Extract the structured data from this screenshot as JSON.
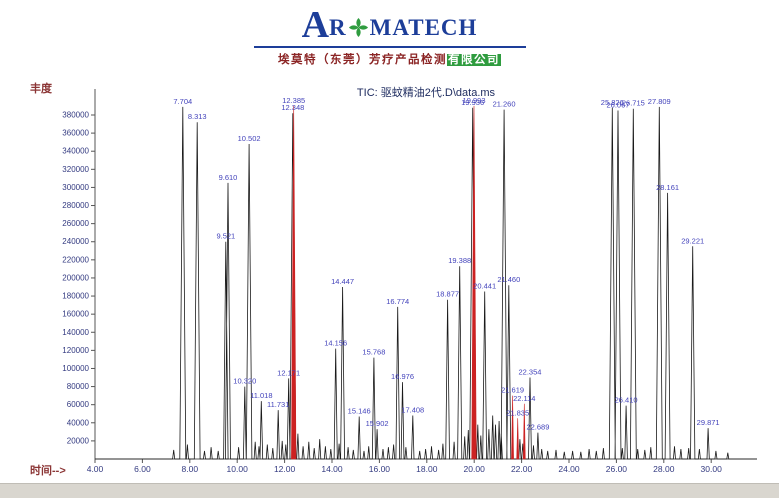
{
  "header": {
    "logo": {
      "big_a": "A",
      "r": "R",
      "matech": "MATECH",
      "cross_icon": "green-clover-cross",
      "brand_color": "#1d3e99",
      "icon_color": "#2f9c3f"
    },
    "company": {
      "main": "埃莫特（东莞）芳疗产品检测",
      "highlight": "有限公司",
      "text_color": "#8b2424",
      "highlight_bg": "#2f9c3f"
    }
  },
  "chart_data": {
    "type": "line",
    "title": "TIC: 驱蚊精油2代.D\\data.ms",
    "xlabel": "时间-->",
    "ylabel": "丰度",
    "x_range": [
      4.0,
      31.5
    ],
    "y_range": [
      0,
      400000
    ],
    "grid": false,
    "legend": "none",
    "line_color": "#1a1a1a",
    "highlight_color": "#cc2222",
    "label_color": "#4343bb",
    "axis_text_color": "#333a80",
    "x_ticks": [
      {
        "value": 4,
        "label": "4.00"
      },
      {
        "value": 6,
        "label": "6.00"
      },
      {
        "value": 8,
        "label": "8.00"
      },
      {
        "value": 10,
        "label": "10.00"
      },
      {
        "value": 12,
        "label": "12.00"
      },
      {
        "value": 14,
        "label": "14.00"
      },
      {
        "value": 16,
        "label": "16.00"
      },
      {
        "value": 18,
        "label": "18.00"
      },
      {
        "value": 20,
        "label": "20.00"
      },
      {
        "value": 22,
        "label": "22.00"
      },
      {
        "value": 24,
        "label": "24.00"
      },
      {
        "value": 26,
        "label": "26.00"
      },
      {
        "value": 28,
        "label": "28.00"
      },
      {
        "value": 30,
        "label": "30.00"
      }
    ],
    "y_ticks": [
      {
        "value": 20000,
        "label": "20000"
      },
      {
        "value": 40000,
        "label": "40000"
      },
      {
        "value": 60000,
        "label": "60000"
      },
      {
        "value": 80000,
        "label": "80000"
      },
      {
        "value": 100000,
        "label": "100000"
      },
      {
        "value": 120000,
        "label": "120000"
      },
      {
        "value": 140000,
        "label": "140000"
      },
      {
        "value": 160000,
        "label": "160000"
      },
      {
        "value": 180000,
        "label": "180000"
      },
      {
        "value": 200000,
        "label": "200000"
      },
      {
        "value": 220000,
        "label": "220000"
      },
      {
        "value": 240000,
        "label": "240000"
      },
      {
        "value": 260000,
        "label": "260000"
      },
      {
        "value": 280000,
        "label": "280000"
      },
      {
        "value": 300000,
        "label": "300000"
      },
      {
        "value": 320000,
        "label": "320000"
      },
      {
        "value": 340000,
        "label": "340000"
      },
      {
        "value": 360000,
        "label": "360000"
      },
      {
        "value": 380000,
        "label": "380000"
      }
    ],
    "peaks": [
      {
        "rt": 7.704,
        "abundance": 389000,
        "label": "7.704"
      },
      {
        "rt": 8.313,
        "abundance": 372000,
        "label": "8.313"
      },
      {
        "rt": 9.521,
        "abundance": 240000,
        "label": "9.521"
      },
      {
        "rt": 9.61,
        "abundance": 305000,
        "label": "9.610"
      },
      {
        "rt": 10.32,
        "abundance": 80000,
        "label": "10.320"
      },
      {
        "rt": 10.502,
        "abundance": 348000,
        "label": "10.502"
      },
      {
        "rt": 11.018,
        "abundance": 64000,
        "label": "11.018"
      },
      {
        "rt": 11.731,
        "abundance": 54000,
        "label": "11.731"
      },
      {
        "rt": 12.171,
        "abundance": 89000,
        "label": "12.171"
      },
      {
        "rt": 12.348,
        "abundance": 382000,
        "label": "12.348"
      },
      {
        "rt": 12.385,
        "abundance": 390000,
        "label": "12.385",
        "color": "red"
      },
      {
        "rt": 14.156,
        "abundance": 122000,
        "label": "14.156"
      },
      {
        "rt": 14.447,
        "abundance": 190000,
        "label": "14.447"
      },
      {
        "rt": 15.146,
        "abundance": 47000,
        "label": "15.146"
      },
      {
        "rt": 15.768,
        "abundance": 112000,
        "label": "15.768"
      },
      {
        "rt": 15.902,
        "abundance": 33000,
        "label": "15.902"
      },
      {
        "rt": 16.774,
        "abundance": 168000,
        "label": "16.774"
      },
      {
        "rt": 16.976,
        "abundance": 85000,
        "label": "16.976"
      },
      {
        "rt": 17.408,
        "abundance": 48000,
        "label": "17.408"
      },
      {
        "rt": 18.877,
        "abundance": 176000,
        "label": "18.877"
      },
      {
        "rt": 19.388,
        "abundance": 213000,
        "label": "19.388"
      },
      {
        "rt": 19.936,
        "abundance": 388000,
        "label": "19.936"
      },
      {
        "rt": 19.993,
        "abundance": 390000,
        "label": "19.993",
        "color": "red"
      },
      {
        "rt": 20.441,
        "abundance": 185000,
        "label": "20.441"
      },
      {
        "rt": 21.26,
        "abundance": 386000,
        "label": "21.260"
      },
      {
        "rt": 21.46,
        "abundance": 192000,
        "label": "21.460"
      },
      {
        "rt": 21.619,
        "abundance": 70000,
        "label": "21.619",
        "color": "red"
      },
      {
        "rt": 21.835,
        "abundance": 45000,
        "label": "21.835",
        "color": "red"
      },
      {
        "rt": 22.114,
        "abundance": 61000,
        "label": "22.114",
        "color": "red"
      },
      {
        "rt": 22.354,
        "abundance": 90000,
        "label": "22.354"
      },
      {
        "rt": 22.689,
        "abundance": 29000,
        "label": "22.689"
      },
      {
        "rt": 25.826,
        "abundance": 388000,
        "label": "25.826"
      },
      {
        "rt": 26.067,
        "abundance": 385000,
        "label": "26.067"
      },
      {
        "rt": 26.41,
        "abundance": 59000,
        "label": "26.410"
      },
      {
        "rt": 26.715,
        "abundance": 387000,
        "label": "26.715"
      },
      {
        "rt": 27.809,
        "abundance": 389000,
        "label": "27.809"
      },
      {
        "rt": 28.161,
        "abundance": 294000,
        "label": "28.161"
      },
      {
        "rt": 29.221,
        "abundance": 235000,
        "label": "29.221"
      },
      {
        "rt": 29.871,
        "abundance": 34000,
        "label": "29.871"
      }
    ],
    "unlabeled_peaks": [
      [
        7.32,
        10000
      ],
      [
        7.9,
        16000
      ],
      [
        8.62,
        9000
      ],
      [
        8.9,
        13000
      ],
      [
        9.2,
        9000
      ],
      [
        10.06,
        13000
      ],
      [
        10.76,
        19000
      ],
      [
        10.92,
        14000
      ],
      [
        11.27,
        16000
      ],
      [
        11.5,
        12000
      ],
      [
        11.9,
        20000
      ],
      [
        12.05,
        16000
      ],
      [
        12.56,
        28000
      ],
      [
        12.78,
        14000
      ],
      [
        13.02,
        19000
      ],
      [
        13.25,
        12000
      ],
      [
        13.48,
        22000
      ],
      [
        13.72,
        14000
      ],
      [
        13.95,
        11000
      ],
      [
        14.3,
        17000
      ],
      [
        14.68,
        13000
      ],
      [
        14.9,
        10000
      ],
      [
        15.35,
        9000
      ],
      [
        15.55,
        14000
      ],
      [
        16.15,
        11000
      ],
      [
        16.38,
        13000
      ],
      [
        16.6,
        16000
      ],
      [
        17.12,
        13000
      ],
      [
        17.7,
        9000
      ],
      [
        17.95,
        11000
      ],
      [
        18.2,
        14000
      ],
      [
        18.5,
        10000
      ],
      [
        18.68,
        17000
      ],
      [
        19.15,
        19000
      ],
      [
        19.6,
        25000
      ],
      [
        19.75,
        32000
      ],
      [
        20.15,
        38000
      ],
      [
        20.28,
        26000
      ],
      [
        20.62,
        33000
      ],
      [
        20.78,
        48000
      ],
      [
        20.9,
        38000
      ],
      [
        21.05,
        42000
      ],
      [
        21.14,
        28000
      ],
      [
        21.93,
        22000
      ],
      [
        22.05,
        17000
      ],
      [
        22.5,
        15000
      ],
      [
        22.85,
        11000
      ],
      [
        23.1,
        9000
      ],
      [
        23.45,
        10000
      ],
      [
        23.8,
        8000
      ],
      [
        24.15,
        9000
      ],
      [
        24.5,
        8000
      ],
      [
        24.85,
        11000
      ],
      [
        25.15,
        9000
      ],
      [
        25.45,
        12000
      ],
      [
        26.25,
        12000
      ],
      [
        26.9,
        11000
      ],
      [
        27.2,
        10000
      ],
      [
        27.45,
        13000
      ],
      [
        28.45,
        14000
      ],
      [
        28.72,
        11000
      ],
      [
        29.05,
        12000
      ],
      [
        29.5,
        11000
      ],
      [
        30.2,
        9000
      ],
      [
        30.7,
        7000
      ]
    ]
  }
}
